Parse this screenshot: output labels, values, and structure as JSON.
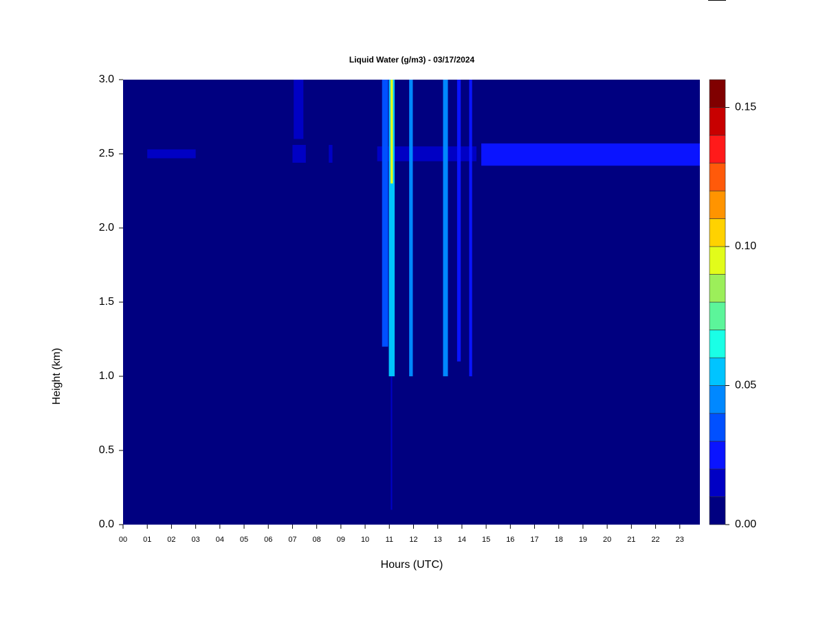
{
  "chart_data": {
    "type": "heatmap",
    "title": "Liquid Water (g/m3) - 03/17/2024",
    "xlabel": "Hours (UTC)",
    "ylabel": "Height (km)",
    "xlim": [
      0,
      23.83
    ],
    "ylim": [
      0,
      3
    ],
    "xticks": [
      {
        "value": 0,
        "label": "00"
      },
      {
        "value": 1,
        "label": "01"
      },
      {
        "value": 2,
        "label": "02"
      },
      {
        "value": 3,
        "label": "03"
      },
      {
        "value": 4,
        "label": "04"
      },
      {
        "value": 5,
        "label": "05"
      },
      {
        "value": 6,
        "label": "06"
      },
      {
        "value": 7,
        "label": "07"
      },
      {
        "value": 8,
        "label": "08"
      },
      {
        "value": 9,
        "label": "09"
      },
      10,
      11,
      12,
      13,
      14,
      15,
      16,
      17,
      18,
      19,
      20,
      21,
      22,
      23
    ],
    "yticks": [
      {
        "value": 0,
        "label": "0.0"
      },
      0.5,
      {
        "value": 1,
        "label": "1.0"
      },
      1.5,
      {
        "value": 2,
        "label": "2.0"
      },
      2.5,
      {
        "value": 3,
        "label": "3.0"
      }
    ],
    "background_value": 0,
    "levels": [
      0,
      0.01,
      0.02,
      0.03,
      0.04,
      0.05,
      0.06,
      0.07,
      0.08,
      0.09,
      0.1,
      0.11,
      0.12,
      0.13,
      0.14,
      0.15,
      0.16
    ],
    "colors": [
      "#000080",
      "#0000c4",
      "#0a14ff",
      "#0050ff",
      "#0088ff",
      "#00c4ff",
      "#1affe6",
      "#5cf59a",
      "#9cef5a",
      "#e2fc1a",
      "#ffd200",
      "#ff9400",
      "#ff5a0a",
      "#ff1a1a",
      "#c80000",
      "#800000"
    ],
    "colorbar_ticks": [
      {
        "value": 0,
        "label": "0.00"
      },
      {
        "value": 0.05,
        "label": "0.05"
      },
      {
        "value": 0.1,
        "label": "0.10"
      },
      {
        "value": 0.15,
        "label": "0.15"
      }
    ],
    "cells": [
      {
        "x": [
          1.0,
          3.0
        ],
        "y": [
          2.47,
          2.53
        ],
        "value": 0.015
      },
      {
        "x": [
          7.0,
          7.55
        ],
        "y": [
          2.44,
          2.56
        ],
        "value": 0.015
      },
      {
        "x": [
          7.05,
          7.45
        ],
        "y": [
          2.6,
          3.0
        ],
        "value": 0.012
      },
      {
        "x": [
          8.5,
          8.65
        ],
        "y": [
          2.44,
          2.56
        ],
        "value": 0.015
      },
      {
        "x": [
          10.5,
          14.6
        ],
        "y": [
          2.45,
          2.55
        ],
        "value": 0.015
      },
      {
        "x": [
          10.7,
          10.95
        ],
        "y": [
          1.2,
          3.0
        ],
        "value": 0.03
      },
      {
        "x": [
          10.98,
          11.22
        ],
        "y": [
          1.0,
          3.0
        ],
        "value": 0.05
      },
      {
        "x": [
          11.05,
          11.15
        ],
        "y": [
          2.3,
          3.0
        ],
        "value": 0.09
      },
      {
        "x": [
          11.06,
          11.12
        ],
        "y": [
          0.1,
          1.0
        ],
        "value": 0.015
      },
      {
        "x": [
          11.82,
          11.97
        ],
        "y": [
          1.0,
          3.0
        ],
        "value": 0.04
      },
      {
        "x": [
          13.22,
          13.42
        ],
        "y": [
          1.0,
          3.0
        ],
        "value": 0.04
      },
      {
        "x": [
          13.8,
          13.95
        ],
        "y": [
          1.1,
          3.0
        ],
        "value": 0.02
      },
      {
        "x": [
          14.3,
          14.42
        ],
        "y": [
          1.0,
          3.0
        ],
        "value": 0.02
      },
      {
        "x": [
          14.8,
          23.83
        ],
        "y": [
          2.42,
          2.57
        ],
        "value": 0.02
      }
    ]
  }
}
